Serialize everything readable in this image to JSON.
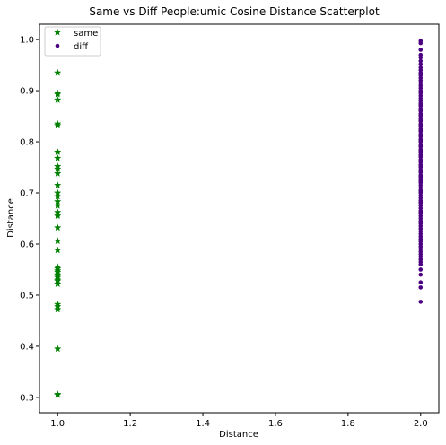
{
  "chart_data": {
    "type": "scatter",
    "title": "Same vs Diff People:umic Cosine Distance Scatterplot",
    "xlabel": "Distance",
    "ylabel": "Distance",
    "xlim": [
      0.95,
      2.05
    ],
    "ylim": [
      0.27,
      1.03
    ],
    "xticks": [
      1.0,
      1.2,
      1.4,
      1.6,
      1.8,
      2.0
    ],
    "xtick_labels": [
      "1.0",
      "1.2",
      "1.4",
      "1.6",
      "1.8",
      "2.0"
    ],
    "yticks": [
      0.3,
      0.4,
      0.5,
      0.6,
      0.7,
      0.8,
      0.9,
      1.0
    ],
    "ytick_labels": [
      "0.3",
      "0.4",
      "0.5",
      "0.6",
      "0.7",
      "0.8",
      "0.9",
      "1.0"
    ],
    "grid": false,
    "legend": {
      "placement": "top-left",
      "entries": [
        "same",
        "diff"
      ]
    },
    "series": [
      {
        "name": "same",
        "marker": "star",
        "color": "#008000",
        "x": [
          1,
          1,
          1,
          1,
          1,
          1,
          1,
          1,
          1,
          1,
          1,
          1,
          1,
          1,
          1,
          1,
          1,
          1,
          1,
          1,
          1,
          1,
          1,
          1,
          1,
          1,
          1,
          1,
          1,
          1,
          1,
          1,
          1,
          1,
          1,
          1,
          1,
          1
        ],
        "y": [
          0.935,
          0.895,
          0.893,
          0.882,
          0.835,
          0.832,
          0.78,
          0.768,
          0.752,
          0.747,
          0.738,
          0.715,
          0.7,
          0.693,
          0.683,
          0.675,
          0.662,
          0.657,
          0.655,
          0.632,
          0.606,
          0.588,
          0.555,
          0.552,
          0.548,
          0.545,
          0.54,
          0.538,
          0.535,
          0.53,
          0.528,
          0.522,
          0.482,
          0.478,
          0.472,
          0.395,
          0.306,
          0.305
        ]
      },
      {
        "name": "diff",
        "marker": "circle",
        "color": "#4b0082",
        "x": [
          2,
          2,
          2,
          2,
          2,
          2,
          2,
          2,
          2,
          2,
          2,
          2,
          2,
          2,
          2,
          2,
          2,
          2,
          2,
          2,
          2,
          2,
          2,
          2,
          2,
          2,
          2,
          2,
          2,
          2,
          2,
          2,
          2,
          2,
          2,
          2,
          2,
          2,
          2,
          2,
          2,
          2,
          2,
          2,
          2,
          2,
          2,
          2,
          2,
          2,
          2,
          2,
          2,
          2,
          2,
          2,
          2,
          2,
          2,
          2,
          2,
          2,
          2,
          2,
          2,
          2,
          2,
          2,
          2,
          2,
          2,
          2,
          2,
          2,
          2,
          2,
          2,
          2,
          2,
          2,
          2,
          2,
          2,
          2,
          2,
          2,
          2,
          2,
          2,
          2,
          2,
          2,
          2,
          2,
          2,
          2,
          2,
          2,
          2,
          2,
          2,
          2,
          2,
          2,
          2,
          2,
          2,
          2,
          2,
          2
        ],
        "y": [
          0.997,
          0.993,
          0.98,
          0.97,
          0.965,
          0.958,
          0.952,
          0.945,
          0.94,
          0.935,
          0.93,
          0.925,
          0.92,
          0.915,
          0.91,
          0.905,
          0.9,
          0.895,
          0.89,
          0.885,
          0.88,
          0.875,
          0.87,
          0.865,
          0.86,
          0.855,
          0.85,
          0.845,
          0.84,
          0.835,
          0.83,
          0.825,
          0.82,
          0.815,
          0.81,
          0.805,
          0.8,
          0.795,
          0.79,
          0.785,
          0.78,
          0.775,
          0.77,
          0.765,
          0.76,
          0.755,
          0.75,
          0.745,
          0.74,
          0.735,
          0.73,
          0.725,
          0.72,
          0.715,
          0.71,
          0.705,
          0.7,
          0.695,
          0.69,
          0.685,
          0.68,
          0.675,
          0.67,
          0.665,
          0.66,
          0.655,
          0.65,
          0.645,
          0.64,
          0.635,
          0.63,
          0.625,
          0.62,
          0.615,
          0.61,
          0.605,
          0.6,
          0.595,
          0.59,
          0.585,
          0.58,
          0.575,
          0.57,
          0.565,
          0.56,
          0.55,
          0.54,
          0.525,
          0.515,
          0.487,
          0.862,
          0.842,
          0.822,
          0.802,
          0.782,
          0.762,
          0.742,
          0.722,
          0.702,
          0.682,
          0.662,
          0.642,
          0.872,
          0.852,
          0.832,
          0.812,
          0.792,
          0.772,
          0.752,
          0.732
        ]
      }
    ]
  }
}
